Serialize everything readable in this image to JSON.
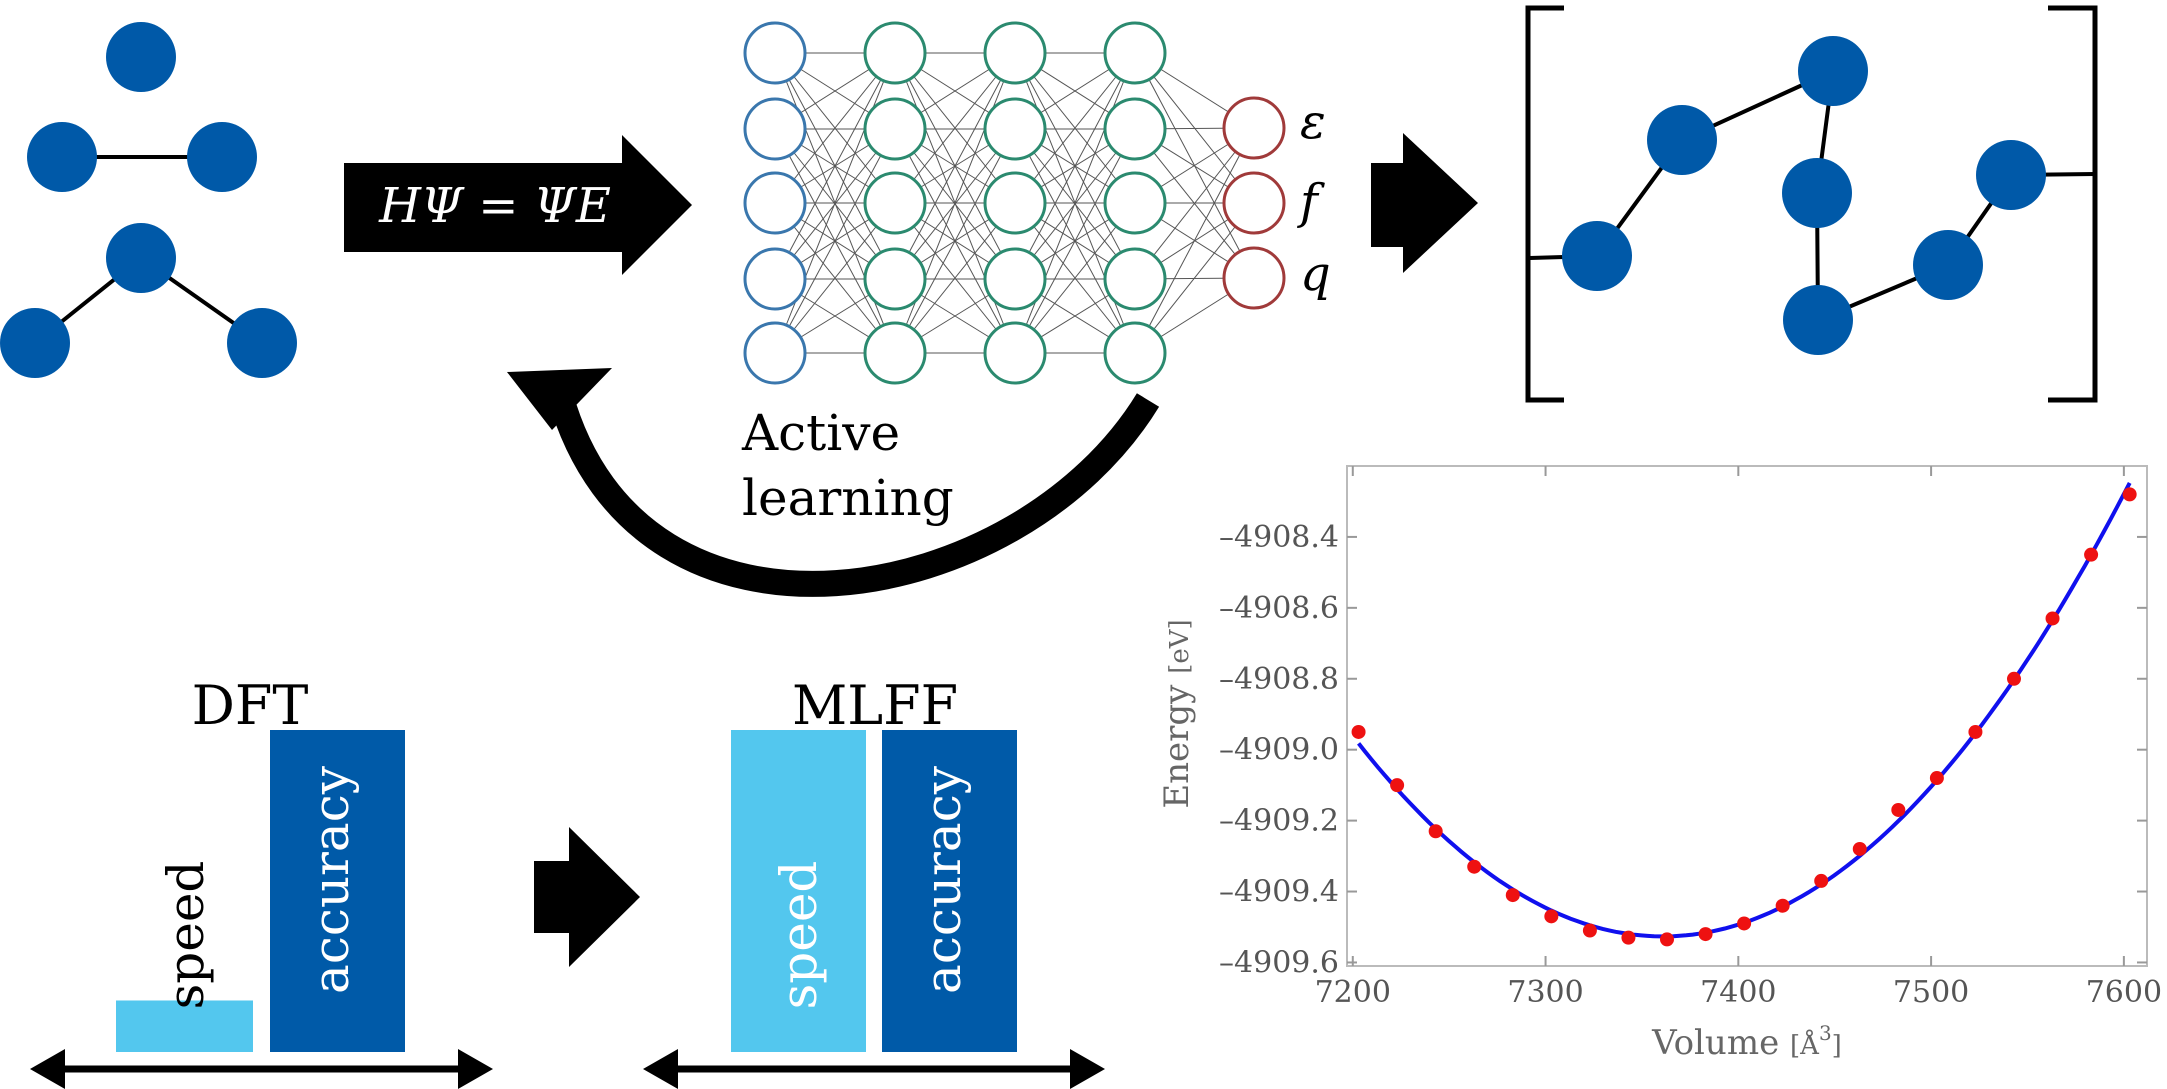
{
  "colors": {
    "atom": "#0059a8",
    "input_node": "#3a77ad",
    "hidden_node": "#2b8a6f",
    "output_node": "#a03a3a",
    "speed_bar": "#53c7ee",
    "accuracy_bar": "#005aa8",
    "curve": "#1010ee",
    "points": "#ee1111"
  },
  "equation": "HΨ = ΨE",
  "network": {
    "outputs": [
      "ε",
      "f",
      "q"
    ]
  },
  "active_learning": {
    "line1": "Active",
    "line2": "learning"
  },
  "dft": {
    "title": "DFT",
    "speed_label": "speed",
    "accuracy_label": "accuracy",
    "speed_level": 0.16,
    "accuracy_level": 1.0
  },
  "mlff": {
    "title": "MLFF",
    "speed_label": "speed",
    "accuracy_label": "accuracy",
    "speed_level": 1.0,
    "accuracy_level": 1.0
  },
  "chart_data": {
    "type": "scatter",
    "xlabel": "Volume",
    "xunit": "[Å",
    "xunit_sup": "3",
    "xunit_close": "]",
    "ylabel": "Energy",
    "yunit": "[eV]",
    "xlim": [
      7197,
      7612
    ],
    "ylim": [
      -4909.61,
      -4908.2
    ],
    "xticks": [
      7200,
      7300,
      7400,
      7500,
      7600
    ],
    "yticks": [
      -4908.4,
      -4908.6,
      -4908.8,
      -4909.0,
      -4909.2,
      -4909.4,
      -4909.6
    ],
    "series": [
      {
        "kind": "points",
        "x": [
          7203,
          7223,
          7243,
          7263,
          7283,
          7303,
          7323,
          7343,
          7363,
          7383,
          7403,
          7423,
          7443,
          7463,
          7483,
          7503,
          7523,
          7543,
          7563,
          7583,
          7603
        ],
        "y": [
          -4908.95,
          -4909.1,
          -4909.23,
          -4909.33,
          -4909.41,
          -4909.47,
          -4909.51,
          -4909.53,
          -4909.535,
          -4909.52,
          -4909.49,
          -4909.44,
          -4909.37,
          -4909.28,
          -4909.17,
          -4909.08,
          -4908.95,
          -4908.8,
          -4908.63,
          -4908.45,
          -4908.28
        ]
      },
      {
        "kind": "fit"
      }
    ]
  }
}
